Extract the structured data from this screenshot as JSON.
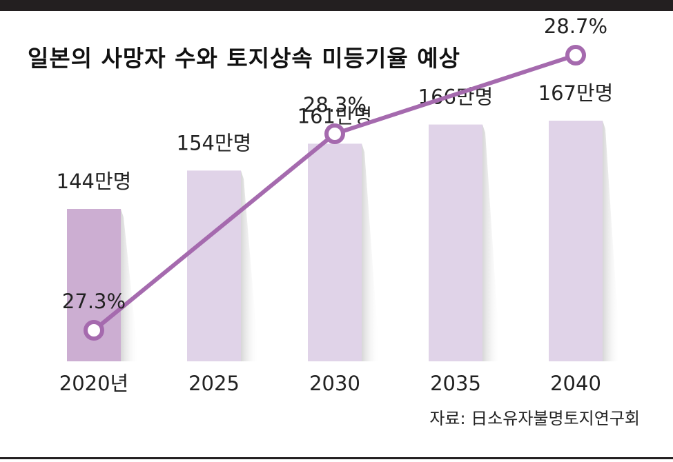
{
  "title": "일본의 사망자 수와 토지상속 미등기율 예상",
  "source": "자료: 日소유자불명토지연구회",
  "colors": {
    "bar": "#e0d3e8",
    "bar_highlight": "#ccaed2",
    "line": "#a56aae",
    "marker_fill": "#ffffff",
    "frame": "#231f20"
  },
  "chart_data": {
    "type": "bar",
    "title": "일본의 사망자 수와 토지상속 미등기율 예상",
    "categories": [
      "2020년",
      "2025",
      "2030",
      "2035",
      "2040"
    ],
    "series": [
      {
        "type": "bar",
        "values": [
          144,
          154,
          161,
          166,
          167
        ],
        "labels": [
          "144만명",
          "154만명",
          "161만명",
          "166만명",
          "167만명"
        ]
      },
      {
        "type": "line",
        "x": [
          "2020년",
          "2030",
          "2040"
        ],
        "values": [
          27.3,
          28.3,
          28.7
        ],
        "labels": [
          "27.3%",
          "28.3%",
          "28.7%"
        ]
      }
    ],
    "xlabel": "",
    "ylabel": "",
    "grid": false,
    "legend": "none"
  }
}
